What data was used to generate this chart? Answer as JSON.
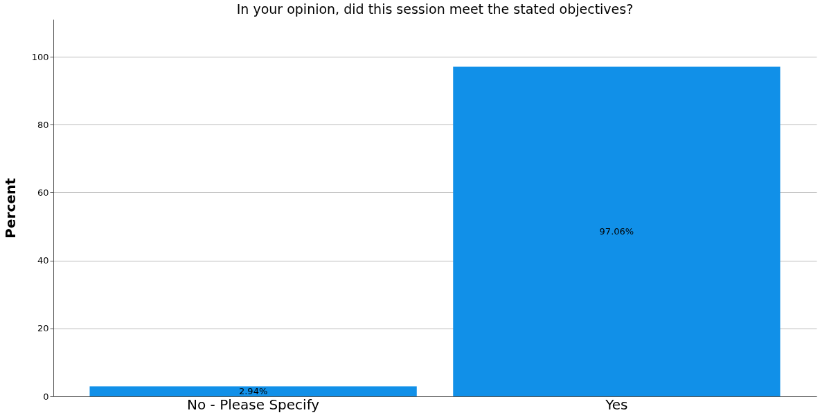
{
  "chart_data": {
    "type": "bar",
    "title": "In your opinion, did this session meet the stated objectives?",
    "ylabel": "Percent",
    "categories": [
      "No - Please Specify",
      "Yes"
    ],
    "values": [
      2.94,
      97.06
    ],
    "value_labels": [
      "2.94%",
      "97.06%"
    ],
    "color": "#1190e8",
    "ylim": [
      0,
      111
    ],
    "yticks": [
      0,
      20,
      40,
      60,
      80,
      100
    ],
    "grid": "y"
  }
}
